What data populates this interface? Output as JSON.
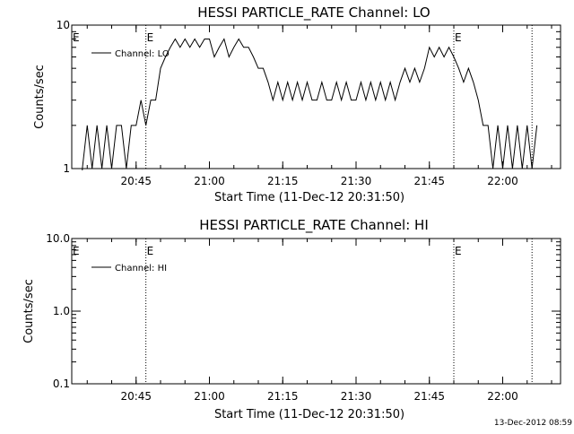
{
  "chart_data": [
    {
      "type": "line",
      "title": "HESSI PARTICLE_RATE Channel: LO",
      "xlabel": "Start Time (11-Dec-12 20:31:50)",
      "ylabel": "Counts/sec",
      "y_scale": "log",
      "ylim": [
        1,
        10
      ],
      "yticks": [
        "1",
        "10"
      ],
      "xticks": [
        "20:45",
        "21:00",
        "21:15",
        "21:30",
        "21:45",
        "22:00"
      ],
      "xlim": [
        "20:31:50",
        "22:11:50"
      ],
      "legend": "top-left",
      "series": [
        {
          "name": "Channel: LO",
          "color": "#000000",
          "x": [
            "20:34",
            "20:35",
            "20:36",
            "20:37",
            "20:38",
            "20:39",
            "20:40",
            "20:41",
            "20:42",
            "20:43",
            "20:44",
            "20:45",
            "20:46",
            "20:47",
            "20:48",
            "20:49",
            "20:50",
            "20:51",
            "20:52",
            "20:53",
            "20:54",
            "20:55",
            "20:56",
            "20:57",
            "20:58",
            "20:59",
            "21:00",
            "21:01",
            "21:02",
            "21:03",
            "21:04",
            "21:05",
            "21:06",
            "21:07",
            "21:08",
            "21:09",
            "21:10",
            "21:11",
            "21:12",
            "21:13",
            "21:14",
            "21:15",
            "21:16",
            "21:17",
            "21:18",
            "21:19",
            "21:20",
            "21:21",
            "21:22",
            "21:23",
            "21:24",
            "21:25",
            "21:26",
            "21:27",
            "21:28",
            "21:29",
            "21:30",
            "21:31",
            "21:32",
            "21:33",
            "21:34",
            "21:35",
            "21:36",
            "21:37",
            "21:38",
            "21:39",
            "21:40",
            "21:41",
            "21:42",
            "21:43",
            "21:44",
            "21:45",
            "21:46",
            "21:47",
            "21:48",
            "21:49",
            "21:50",
            "21:51",
            "21:52",
            "21:53",
            "21:54",
            "21:55",
            "21:56",
            "21:57",
            "21:58",
            "21:59",
            "22:00",
            "22:01",
            "22:02",
            "22:03",
            "22:04",
            "22:05",
            "22:06",
            "22:07"
          ],
          "y": [
            1,
            2,
            1,
            2,
            1,
            2,
            1,
            2,
            2,
            1,
            2,
            2,
            3,
            2,
            3,
            3,
            5,
            6,
            7,
            8,
            7,
            8,
            7,
            8,
            7,
            8,
            8,
            6,
            7,
            8,
            6,
            7,
            8,
            7,
            7,
            6,
            5,
            5,
            4,
            3,
            4,
            3,
            4,
            3,
            4,
            3,
            4,
            3,
            3,
            4,
            3,
            3,
            4,
            3,
            4,
            3,
            3,
            4,
            3,
            4,
            3,
            4,
            3,
            4,
            3,
            4,
            5,
            4,
            5,
            4,
            5,
            7,
            6,
            7,
            6,
            7,
            6,
            5,
            4,
            5,
            4,
            3,
            2,
            2,
            1,
            2,
            1,
            2,
            1,
            2,
            1,
            2,
            1,
            2
          ]
        }
      ],
      "markers": [
        {
          "label": "E",
          "x": "20:47"
        },
        {
          "label": "E",
          "x": "21:50"
        },
        {
          "label": "",
          "x": "22:06"
        }
      ]
    },
    {
      "type": "line",
      "title": "HESSI PARTICLE_RATE Channel: HI",
      "xlabel": "Start Time (11-Dec-12 20:31:50)",
      "ylabel": "Counts/sec",
      "y_scale": "log",
      "ylim": [
        0.1,
        10
      ],
      "yticks": [
        "0.1",
        "1.0",
        "10.0"
      ],
      "xticks": [
        "20:45",
        "21:00",
        "21:15",
        "21:30",
        "21:45",
        "22:00"
      ],
      "xlim": [
        "20:31:50",
        "22:11:50"
      ],
      "legend": "top-left",
      "series": [
        {
          "name": "Channel: HI",
          "color": "#000000",
          "x": [],
          "y": []
        }
      ],
      "markers": [
        {
          "label": "E",
          "x": "20:47"
        },
        {
          "label": "E",
          "x": "21:50"
        },
        {
          "label": "",
          "x": "22:06"
        }
      ]
    }
  ],
  "footer": {
    "timestamp": "13-Dec-2012 08:59"
  }
}
